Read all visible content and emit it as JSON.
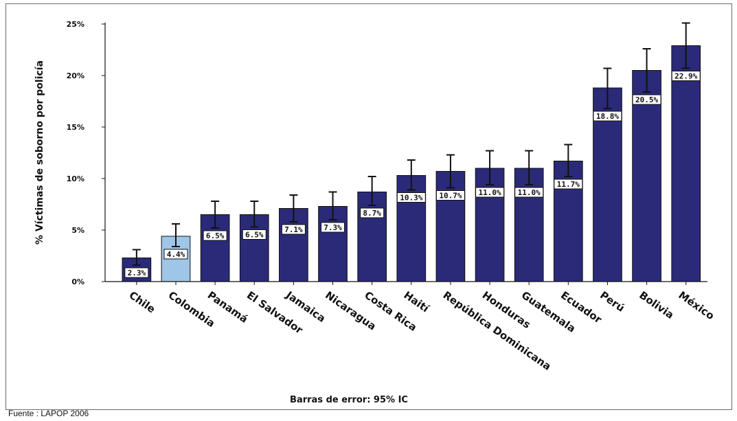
{
  "chart_data": {
    "type": "bar",
    "ylabel": "% Víctimas de soborno por policía",
    "ylim": [
      0,
      25
    ],
    "yticks": [
      0,
      5,
      10,
      15,
      20,
      25
    ],
    "ytick_labels": [
      "0%",
      "5%",
      "10%",
      "15%",
      "20%",
      "25%"
    ],
    "categories": [
      "Chile",
      "Colombia",
      "Panamá",
      "El Salvador",
      "Jamaica",
      "Nicaragua",
      "Costa Rica",
      "Haití",
      "República Dominicana",
      "Honduras",
      "Guatemala",
      "Ecuador",
      "Perú",
      "Bolivia",
      "México"
    ],
    "values": [
      2.3,
      4.4,
      6.5,
      6.5,
      7.1,
      7.3,
      8.7,
      10.3,
      10.7,
      11.0,
      11.0,
      11.7,
      18.8,
      20.5,
      22.9
    ],
    "value_labels": [
      "2.3%",
      "4.4%",
      "6.5%",
      "6.5%",
      "7.1%",
      "7.3%",
      "8.7%",
      "10.3%",
      "10.7%",
      "11.0%",
      "11.0%",
      "11.7%",
      "18.8%",
      "20.5%",
      "22.9%"
    ],
    "error_low": [
      1.6,
      3.4,
      5.2,
      5.3,
      5.8,
      6.0,
      7.4,
      8.9,
      9.1,
      9.4,
      9.4,
      10.2,
      16.8,
      18.4,
      20.7
    ],
    "error_high": [
      3.1,
      5.6,
      7.8,
      7.8,
      8.4,
      8.7,
      10.2,
      11.8,
      12.3,
      12.7,
      12.7,
      13.3,
      20.7,
      22.6,
      25.1
    ],
    "highlight_category": "Colombia",
    "colors": {
      "bar": "#2b2a78",
      "highlight": "#9fc6e6",
      "bar_stroke": "#111111",
      "axis": "#111111"
    },
    "grid": false,
    "error_bar_note": "Barras de error: 95% IC",
    "source": "Fuente : LAPOP 2006"
  }
}
